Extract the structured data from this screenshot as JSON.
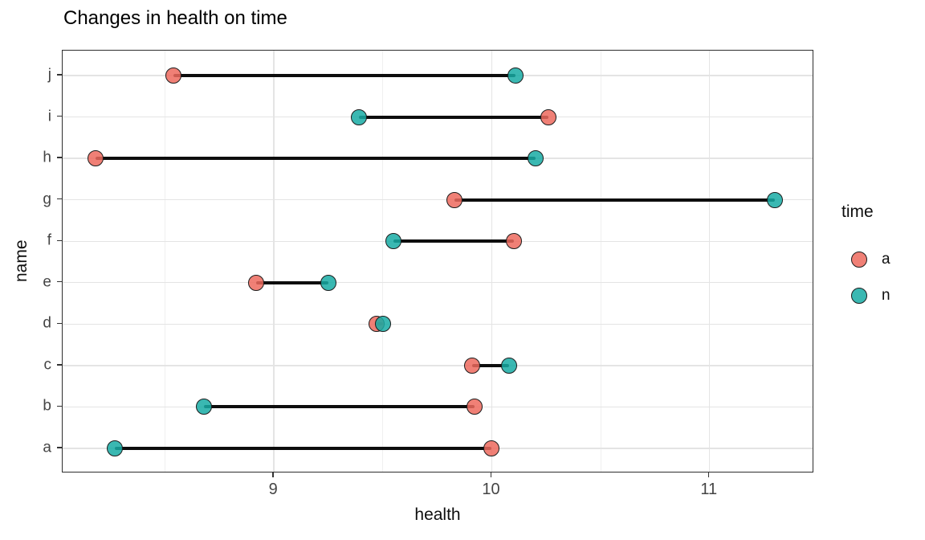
{
  "title": "Changes in health on time",
  "chart_data": {
    "type": "scatter",
    "subtype": "dumbbell",
    "title": "Changes in health on time",
    "xlabel": "health",
    "ylabel": "name",
    "xlim": [
      8.03,
      11.48
    ],
    "x_ticks": [
      9,
      10,
      11
    ],
    "x_tick_labels": [
      "9",
      "10",
      "11"
    ],
    "x_minor_gridlines": [
      8.5,
      9.5,
      10.5,
      11.5
    ],
    "categories": [
      "j",
      "i",
      "h",
      "g",
      "f",
      "e",
      "d",
      "c",
      "b",
      "a"
    ],
    "grid": true,
    "series": [
      {
        "name": "a",
        "color": "#ED6A5E",
        "values": [
          8.54,
          10.26,
          8.18,
          9.83,
          10.1,
          8.92,
          9.47,
          9.91,
          9.92,
          10.0
        ]
      },
      {
        "name": "n",
        "color": "#17ACA4",
        "values": [
          10.11,
          9.39,
          10.2,
          11.3,
          9.55,
          9.25,
          9.5,
          10.08,
          8.68,
          8.27
        ]
      }
    ],
    "legend": {
      "title": "time",
      "position": "right",
      "entries": [
        {
          "label": "a",
          "color": "#ED6A5E"
        },
        {
          "label": "n",
          "color": "#17ACA4"
        }
      ]
    },
    "style": {
      "segment_color": "#0d0d0d",
      "point_stroke": "#1c1c1c",
      "point_alpha": 0.85,
      "grid_major_color": "#e4e4e4",
      "grid_minor_color": "#f0f0f0",
      "background": "#ffffff"
    }
  }
}
